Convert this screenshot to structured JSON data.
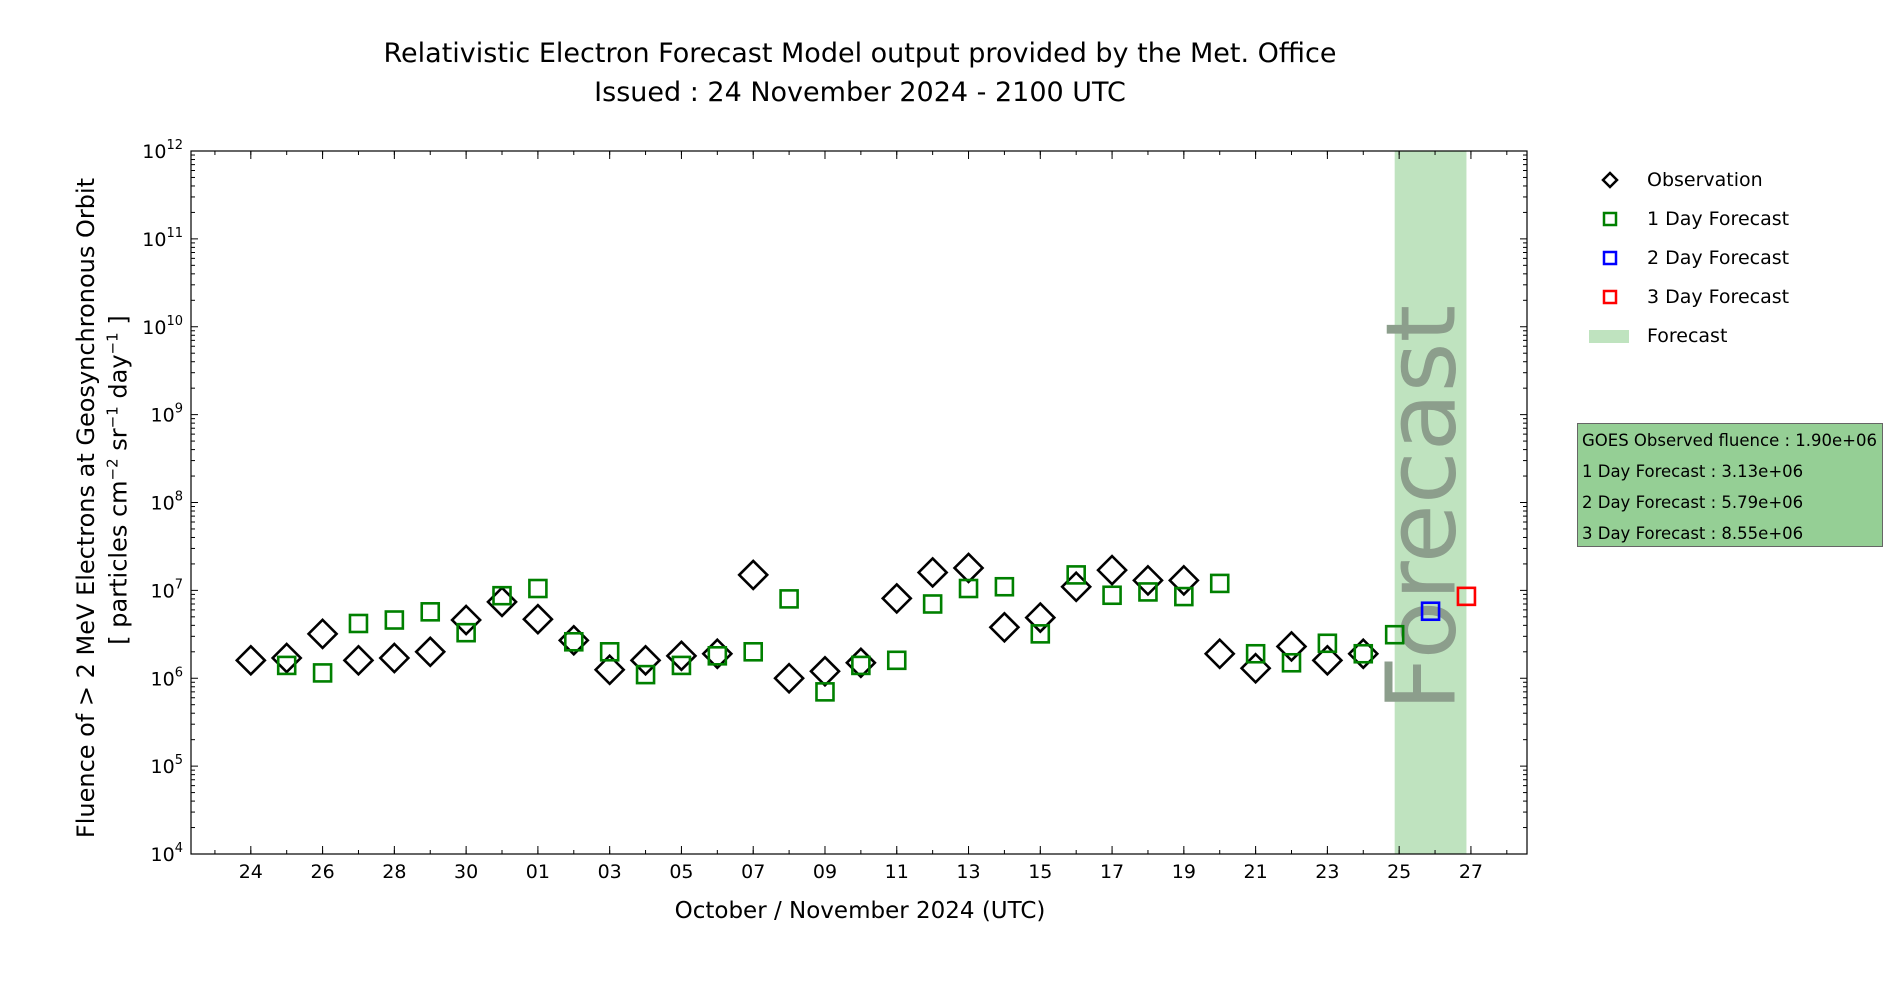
{
  "chart_data": {
    "type": "scatter",
    "title": "Relativistic Electron Forecast Model output provided by the Met. Office",
    "subtitle": "Issued : 24 November 2024 - 2100 UTC",
    "xlabel": "October / November 2024 (UTC)",
    "ylabel_line1": "Fluence of > 2 MeV Electrons at Geosynchronous Orbit",
    "ylabel_line2": "[ particles cm",
    "ylabel_sup1": "−2",
    "ylabel_mid": " sr",
    "ylabel_sup2": "−1",
    "ylabel_mid2": " day",
    "ylabel_sup3": "−1",
    "ylabel_end": " ]",
    "y_scale": "log",
    "ylim": [
      10000.0,
      1000000000000.0
    ],
    "y_tick_labels": [
      {
        "base": "10",
        "exp": "4"
      },
      {
        "base": "10",
        "exp": "5"
      },
      {
        "base": "10",
        "exp": "6"
      },
      {
        "base": "10",
        "exp": "7"
      },
      {
        "base": "10",
        "exp": "8"
      },
      {
        "base": "10",
        "exp": "9"
      },
      {
        "base": "10",
        "exp": "10"
      },
      {
        "base": "10",
        "exp": "11"
      },
      {
        "base": "10",
        "exp": "12"
      }
    ],
    "xlim": [
      "2024-10-22T08:00",
      "2024-11-28T13:30"
    ],
    "x_ticks": [
      {
        "date": "2024-10-24",
        "label": "24"
      },
      {
        "date": "2024-10-26",
        "label": "26"
      },
      {
        "date": "2024-10-28",
        "label": "28"
      },
      {
        "date": "2024-10-30",
        "label": "30"
      },
      {
        "date": "2024-11-01",
        "label": "01"
      },
      {
        "date": "2024-11-03",
        "label": "03"
      },
      {
        "date": "2024-11-05",
        "label": "05"
      },
      {
        "date": "2024-11-07",
        "label": "07"
      },
      {
        "date": "2024-11-09",
        "label": "09"
      },
      {
        "date": "2024-11-11",
        "label": "11"
      },
      {
        "date": "2024-11-13",
        "label": "13"
      },
      {
        "date": "2024-11-15",
        "label": "15"
      },
      {
        "date": "2024-11-17",
        "label": "17"
      },
      {
        "date": "2024-11-19",
        "label": "19"
      },
      {
        "date": "2024-11-21",
        "label": "21"
      },
      {
        "date": "2024-11-23",
        "label": "23"
      },
      {
        "date": "2024-11-25",
        "label": "25"
      },
      {
        "date": "2024-11-27",
        "label": "27"
      }
    ],
    "grid": false,
    "legend_position": "outside-right",
    "forecast_band": {
      "label": "Forecast",
      "start": "2024-11-24T21:00",
      "end": "2024-11-26T21:00",
      "color": "#bfe3bf",
      "text_color": "#8c9e8c"
    },
    "series": [
      {
        "name": "Observation",
        "marker": "diamond",
        "color": "#000000",
        "points": [
          [
            "2024-10-24",
            1600000.0
          ],
          [
            "2024-10-25",
            1700000.0
          ],
          [
            "2024-10-26",
            3200000.0
          ],
          [
            "2024-10-27",
            1600000.0
          ],
          [
            "2024-10-28",
            1700000.0
          ],
          [
            "2024-10-29",
            2000000.0
          ],
          [
            "2024-10-30",
            4600000.0
          ],
          [
            "2024-10-31",
            7400000.0
          ],
          [
            "2024-11-01",
            4700000.0
          ],
          [
            "2024-11-02",
            2700000.0
          ],
          [
            "2024-11-03",
            1250000.0
          ],
          [
            "2024-11-04",
            1600000.0
          ],
          [
            "2024-11-05",
            1800000.0
          ],
          [
            "2024-11-06",
            1900000.0
          ],
          [
            "2024-11-07",
            15000000.0
          ],
          [
            "2024-11-08",
            1000000.0
          ],
          [
            "2024-11-09",
            1200000.0
          ],
          [
            "2024-11-10",
            1500000.0
          ],
          [
            "2024-11-11",
            8100000.0
          ],
          [
            "2024-11-12",
            16000000.0
          ],
          [
            "2024-11-13",
            18000000.0
          ],
          [
            "2024-11-14",
            3800000.0
          ],
          [
            "2024-11-15",
            4900000.0
          ],
          [
            "2024-11-16",
            11000000.0
          ],
          [
            "2024-11-17",
            17000000.0
          ],
          [
            "2024-11-18",
            13000000.0
          ],
          [
            "2024-11-19",
            13000000.0
          ],
          [
            "2024-11-20",
            1900000.0
          ],
          [
            "2024-11-21",
            1300000.0
          ],
          [
            "2024-11-22",
            2300000.0
          ],
          [
            "2024-11-23",
            1600000.0
          ],
          [
            "2024-11-24",
            1900000.0
          ]
        ]
      },
      {
        "name": "1 Day Forecast",
        "marker": "square",
        "color": "#008000",
        "points": [
          [
            "2024-10-25",
            1400000.0
          ],
          [
            "2024-10-26",
            1150000.0
          ],
          [
            "2024-10-27",
            4200000.0
          ],
          [
            "2024-10-28",
            4600000.0
          ],
          [
            "2024-10-29",
            5700000.0
          ],
          [
            "2024-10-30",
            3300000.0
          ],
          [
            "2024-10-31",
            8700000.0
          ],
          [
            "2024-11-01",
            10500000.0
          ],
          [
            "2024-11-02",
            2600000.0
          ],
          [
            "2024-11-03",
            2000000.0
          ],
          [
            "2024-11-04",
            1100000.0
          ],
          [
            "2024-11-05",
            1400000.0
          ],
          [
            "2024-11-06",
            1800000.0
          ],
          [
            "2024-11-07",
            2000000.0
          ],
          [
            "2024-11-08",
            8000000.0
          ],
          [
            "2024-11-09",
            700000.0
          ],
          [
            "2024-11-10",
            1400000.0
          ],
          [
            "2024-11-11",
            1600000.0
          ],
          [
            "2024-11-12",
            7000000.0
          ],
          [
            "2024-11-13",
            10500000.0
          ],
          [
            "2024-11-14",
            11000000.0
          ],
          [
            "2024-11-15",
            3200000.0
          ],
          [
            "2024-11-16",
            15000000.0
          ],
          [
            "2024-11-17",
            8800000.0
          ],
          [
            "2024-11-18",
            9600000.0
          ],
          [
            "2024-11-19",
            8500000.0
          ],
          [
            "2024-11-20",
            12000000.0
          ],
          [
            "2024-11-21",
            1900000.0
          ],
          [
            "2024-11-22",
            1500000.0
          ],
          [
            "2024-11-23",
            2500000.0
          ],
          [
            "2024-11-24",
            1900000.0
          ],
          [
            "2024-11-24T21:00",
            3130000.0
          ]
        ]
      },
      {
        "name": "2 Day Forecast",
        "marker": "square",
        "color": "#0000ff",
        "points": [
          [
            "2024-11-25T21:00",
            5790000.0
          ]
        ]
      },
      {
        "name": "3 Day Forecast",
        "marker": "square",
        "color": "#ff0000",
        "points": [
          [
            "2024-11-26T21:00",
            8550000.0
          ]
        ]
      }
    ],
    "info_box": {
      "background": "#95cf95",
      "lines": [
        "GOES Observed fluence : 1.90e+06",
        "1 Day Forecast : 3.13e+06",
        "2 Day Forecast : 5.79e+06",
        "3 Day Forecast : 8.55e+06"
      ]
    }
  }
}
